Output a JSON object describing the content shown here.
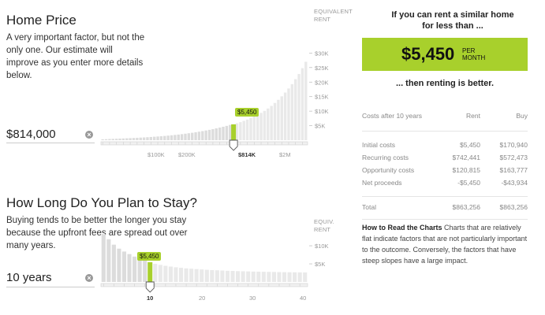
{
  "home": {
    "title": "Home Price",
    "description": "A very important factor, but not the only one. Our estimate will improve as you enter more details below.",
    "value": "$814,000",
    "clear_icon": "close-circle-icon",
    "axis_title": "EQUIVALENT RENT",
    "y_ticks": [
      "$30K",
      "$25K",
      "$20K",
      "$15K",
      "$10K",
      "$5K"
    ],
    "x_ticks": [
      "$100K",
      "$200K",
      "$814K",
      "$2M"
    ],
    "tooltip": "$5,450",
    "handle_icon": "slider-handle-icon",
    "accent": "#a8d02c"
  },
  "stay": {
    "title": "How Long Do You Plan to Stay?",
    "description": "Buying tends to be better the longer you stay because the upfront fees are spread out over many years.",
    "value": "10 years",
    "clear_icon": "close-circle-icon",
    "axis_title": "EQUIV. RENT",
    "y_ticks": [
      "$10K",
      "$5K"
    ],
    "x_ticks": [
      "10",
      "20",
      "30",
      "40"
    ],
    "tooltip": "$5,450",
    "handle_icon": "slider-handle-icon"
  },
  "result": {
    "lead": "If you can rent a similar home for less than ...",
    "amount": "$5,450",
    "per": "PER MONTH",
    "tail": "... then renting is better."
  },
  "costs": {
    "header": [
      "Costs after 10 years",
      "Rent",
      "Buy"
    ],
    "rows": [
      [
        "Initial costs",
        "$5,450",
        "$170,940"
      ],
      [
        "Recurring costs",
        "$742,441",
        "$572,473"
      ],
      [
        "Opportunity costs",
        "$120,815",
        "$163,777"
      ],
      [
        "Net proceeds",
        "-$5,450",
        "-$43,934"
      ]
    ],
    "total": [
      "Total",
      "$863,256",
      "$863,256"
    ]
  },
  "howto": {
    "title": "How to Read the Charts",
    "text": "Charts that are relatively flat indicate factors that are not particularly important to the outcome. Conversely, the factors that have steep slopes have a large impact."
  },
  "chart_data": [
    {
      "type": "bar",
      "title": "Home Price",
      "ylabel": "EQUIVALENT RENT",
      "ylim": [
        0,
        32000
      ],
      "selected": "$814K",
      "selected_value": 5450,
      "values": [
        300,
        350,
        400,
        450,
        500,
        550,
        600,
        650,
        700,
        760,
        820,
        880,
        950,
        1020,
        1100,
        1180,
        1270,
        1360,
        1460,
        1570,
        1680,
        1800,
        1930,
        2070,
        2220,
        2380,
        2550,
        2730,
        2920,
        3120,
        3340,
        3570,
        3810,
        4070,
        4340,
        4620,
        4920,
        5250,
        5450,
        5800,
        6200,
        6650,
        7100,
        7600,
        8150,
        8750,
        9400,
        10100,
        10900,
        11800,
        12800,
        13900,
        15100,
        16400,
        17800,
        19300,
        21000,
        22800,
        24800,
        27000
      ]
    },
    {
      "type": "bar",
      "title": "How Long Do You Plan to Stay?",
      "ylabel": "EQUIV. RENT",
      "ylim": [
        0,
        13500
      ],
      "selected": "10",
      "selected_value": 5450,
      "values": [
        13200,
        11800,
        10300,
        9200,
        8400,
        7700,
        7000,
        6400,
        5900,
        5450,
        5000,
        4700,
        4450,
        4250,
        4050,
        3900,
        3750,
        3650,
        3550,
        3450,
        3350,
        3280,
        3210,
        3150,
        3090,
        3040,
        2990,
        2950,
        2910,
        2870,
        2840,
        2810,
        2780,
        2750,
        2720,
        2700,
        2680,
        2660,
        2640,
        2620
      ]
    }
  ]
}
